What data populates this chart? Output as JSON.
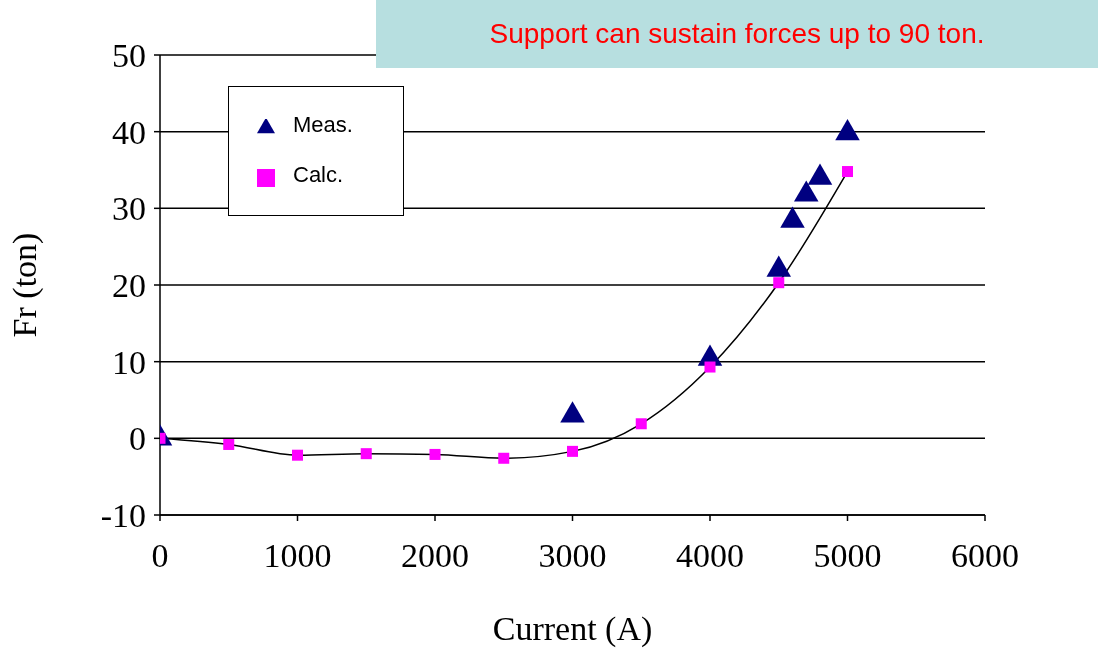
{
  "chart_data": {
    "type": "line",
    "xlabel": "Current (A)",
    "ylabel": "Fr (ton)",
    "annotations": [
      "Support can sustain forces up to 90 ton."
    ],
    "xlim": [
      0,
      6000
    ],
    "xticks": [
      0,
      1000,
      2000,
      3000,
      4000,
      5000,
      6000
    ],
    "ylim": [
      -10,
      50
    ],
    "yticks": [
      -10,
      0,
      10,
      20,
      30,
      40,
      50
    ],
    "grid": "y",
    "legend": "top left",
    "series": [
      {
        "name": "Meas.",
        "type": "scatter",
        "marker": "triangle",
        "color": "#000080",
        "x": [
          0,
          3000,
          4000,
          4500,
          4600,
          4700,
          4800,
          5000
        ],
        "values": [
          0,
          3,
          10.4,
          22,
          28.4,
          31.8,
          34,
          39.8
        ]
      },
      {
        "name": "Calc.",
        "type": "line",
        "marker": "square",
        "color": "#ff00ff",
        "x": [
          0,
          500,
          1000,
          1500,
          2000,
          2500,
          3000,
          3500,
          4000,
          4500,
          5000
        ],
        "values": [
          0,
          -0.8,
          -2.2,
          -2,
          -2.1,
          -2.6,
          -1.7,
          1.9,
          9.3,
          20.3,
          34.8
        ]
      }
    ]
  }
}
